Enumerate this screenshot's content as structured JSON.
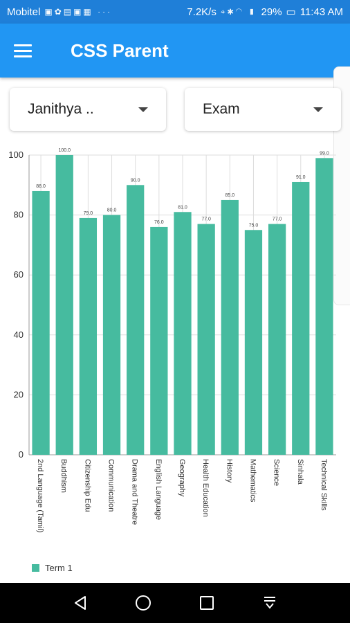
{
  "status_bar": {
    "carrier": "Mobitel",
    "speed": "7.2K/s",
    "battery": "29%",
    "time": "11:43 AM"
  },
  "app_bar": {
    "title": "CSS Parent",
    "menu_icon": "hamburger-menu-icon"
  },
  "filters": {
    "student": "Janithya ..",
    "exam": "Exam"
  },
  "colors": {
    "primary": "#2196f3",
    "bar": "#46bb9f"
  },
  "chart_data": {
    "type": "bar",
    "categories": [
      "2nd Language (Tamil)",
      "Buddhism",
      "Citizenship Edu",
      "Communication",
      "Drama and Theatre",
      "English Language",
      "Geography",
      "Health Education",
      "History",
      "Mathematics",
      "Science",
      "Sinhala",
      "Technical Skills"
    ],
    "series": [
      {
        "name": "Term 1",
        "values": [
          88.0,
          100.0,
          79.0,
          80.0,
          90.0,
          76.0,
          81.0,
          77.0,
          85.0,
          75.0,
          77.0,
          91.0,
          99.0
        ]
      }
    ],
    "data_labels": [
      "88.0",
      "100.0",
      "79.0",
      "80.0",
      "90.0",
      "76.0",
      "81.0",
      "77.0",
      "85.0",
      "75.0",
      "77.0",
      "91.0",
      "99.0"
    ],
    "ylim": [
      0,
      100
    ],
    "yticks": [
      "0",
      "20",
      "40",
      "60",
      "80",
      "100"
    ],
    "grid": true,
    "legend": "bottom-left"
  },
  "nav_bar": {
    "back": "back-icon",
    "home": "home-icon",
    "recents": "recents-icon",
    "notifications": "notification-pull-icon"
  }
}
